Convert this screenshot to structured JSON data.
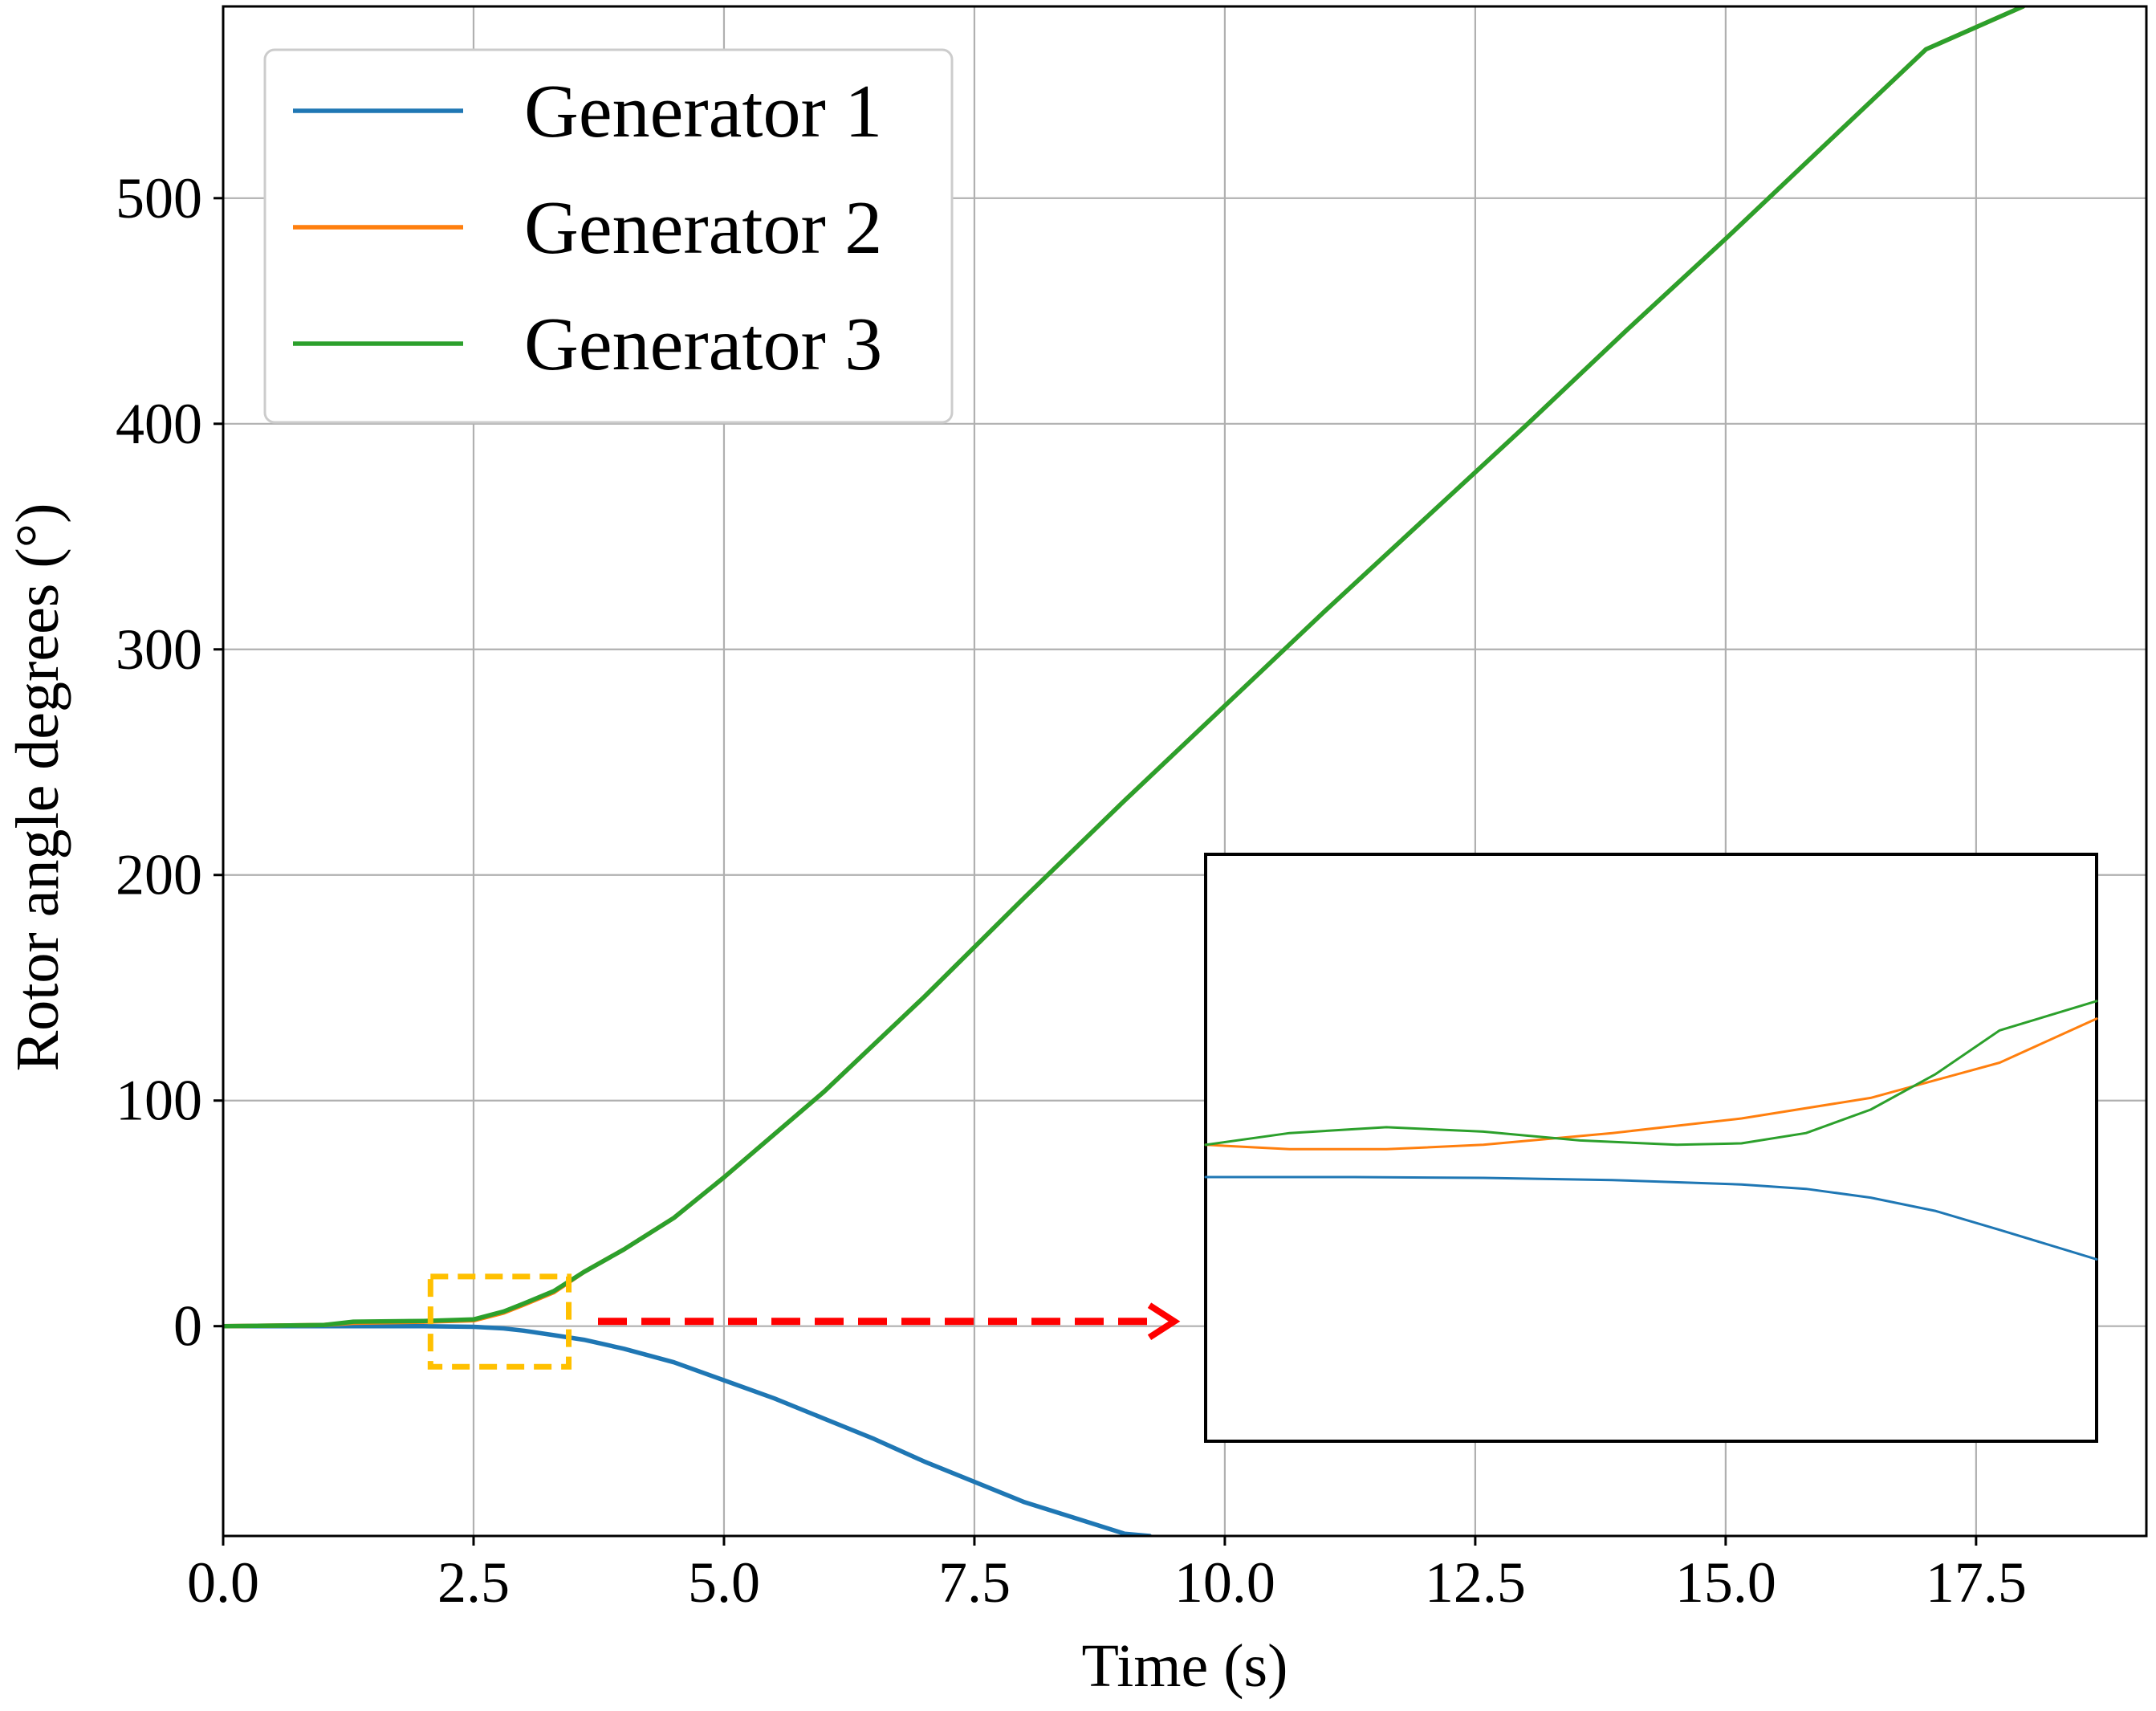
{
  "chart_data": {
    "type": "line",
    "title": "",
    "xlabel": "Time (s)",
    "ylabel": "Rotor angle degrees (°)",
    "xlim": [
      0,
      19.2
    ],
    "ylim": [
      -93,
      585
    ],
    "x_ticks": [
      0.0,
      2.5,
      5.0,
      7.5,
      10.0,
      12.5,
      15.0,
      17.5
    ],
    "x_tick_labels": [
      "0.0",
      "2.5",
      "5.0",
      "7.5",
      "10.0",
      "12.5",
      "15.0",
      "17.5"
    ],
    "y_ticks": [
      0,
      100,
      200,
      300,
      400,
      500
    ],
    "y_tick_labels": [
      "0",
      "100",
      "200",
      "300",
      "400",
      "500"
    ],
    "grid": true,
    "legend_position": "top-left",
    "series": [
      {
        "name": "Generator 1",
        "color": "#1f77b4",
        "x": [
          0,
          1,
          2,
          2.5,
          2.8,
          3,
          3.3,
          3.6,
          4,
          4.5,
          5,
          5.5,
          6,
          6.5,
          7,
          7.5,
          8,
          8.5,
          9,
          9.25
        ],
        "y": [
          0,
          0,
          0,
          -0.3,
          -1,
          -2,
          -4,
          -6,
          -10,
          -16,
          -24,
          -32,
          -41,
          -50,
          -60,
          -69,
          -78,
          -85,
          -92,
          -93
        ]
      },
      {
        "name": "Generator 2",
        "color": "#ff7f0e",
        "x": [
          0,
          1,
          1.3,
          2,
          2.5,
          2.8,
          3,
          3.3,
          3.6,
          4,
          4.5,
          5,
          6,
          7,
          8,
          9,
          10,
          11,
          12,
          13,
          14,
          15,
          16,
          17,
          17.97
        ],
        "y": [
          0,
          0.5,
          1.5,
          2,
          2.6,
          6,
          9.5,
          15,
          24,
          34,
          48,
          66,
          104,
          146,
          190,
          233,
          275,
          317,
          358,
          399,
          441,
          482,
          524,
          566,
          585
        ]
      },
      {
        "name": "Generator 3",
        "color": "#2ca02c",
        "x": [
          0,
          1,
          1.3,
          2,
          2.5,
          2.8,
          3,
          3.3,
          3.6,
          4,
          4.5,
          5,
          6,
          7,
          8,
          9,
          10,
          11,
          12,
          13,
          14,
          15,
          16,
          17,
          17.97
        ],
        "y": [
          0,
          0.5,
          2,
          2.3,
          3,
          6.5,
          10,
          15.5,
          24,
          34,
          48,
          66,
          104,
          146,
          190,
          233,
          275,
          317,
          358,
          399,
          441,
          482,
          524,
          566,
          585
        ]
      }
    ],
    "annotations": [
      {
        "type": "zoom-box",
        "style": "dashed",
        "color": "#ffc000",
        "x_range": [
          2.07,
          3.45
        ],
        "y_range": [
          -18,
          22
        ]
      },
      {
        "type": "arrow",
        "style": "dashed",
        "color": "#ff0000",
        "from": "zoom-box",
        "to": "inset"
      }
    ],
    "inset": {
      "type": "line",
      "position": "lower-right",
      "source": "zoom-box",
      "xlim": [
        2.07,
        3.45
      ],
      "ylim": [
        -18,
        22
      ],
      "series": [
        {
          "name": "Generator 1",
          "color": "#1f77b4",
          "x": [
            2.07,
            2.3,
            2.5,
            2.7,
            2.9,
            3.0,
            3.1,
            3.2,
            3.3,
            3.45
          ],
          "y": [
            0,
            0,
            -0.05,
            -0.2,
            -0.5,
            -0.8,
            -1.4,
            -2.3,
            -3.6,
            -5.6
          ]
        },
        {
          "name": "Generator 2",
          "color": "#ff7f0e",
          "x": [
            2.07,
            2.2,
            2.35,
            2.5,
            2.7,
            2.9,
            3.1,
            3.3,
            3.45
          ],
          "y": [
            2.2,
            1.9,
            1.9,
            2.2,
            3.0,
            4.0,
            5.4,
            7.8,
            10.8
          ]
        },
        {
          "name": "Generator 3",
          "color": "#2ca02c",
          "x": [
            2.07,
            2.2,
            2.35,
            2.5,
            2.65,
            2.8,
            2.9,
            3.0,
            3.1,
            3.2,
            3.3,
            3.45
          ],
          "y": [
            2.2,
            3.0,
            3.4,
            3.1,
            2.5,
            2.2,
            2.3,
            3.0,
            4.6,
            7.0,
            10.0,
            12.0
          ]
        }
      ]
    }
  }
}
